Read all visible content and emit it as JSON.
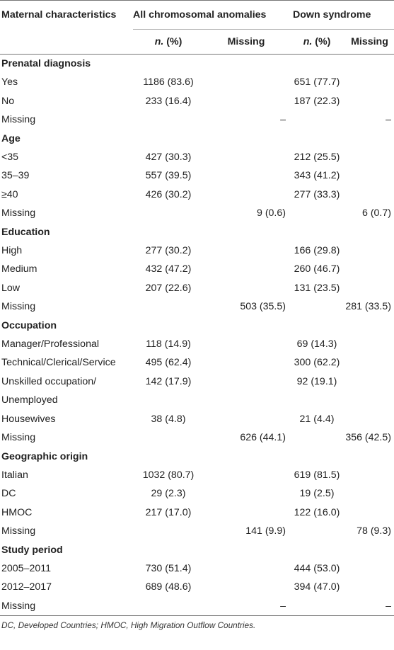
{
  "header": {
    "col_characteristic": "Maternal characteristics",
    "group_all": "All chromosomal anomalies",
    "group_down": "Down syndrome",
    "n_pct": "n. (%)",
    "n_label": "n.",
    "pct_label": " (%)",
    "missing": "Missing"
  },
  "sections": [
    {
      "title": "Prenatal diagnosis",
      "rows": [
        {
          "label": "Yes",
          "all_n": "1186 (83.6)",
          "all_missing": "",
          "down_n": "651 (77.7)",
          "down_missing": ""
        },
        {
          "label": "No",
          "all_n": "233 (16.4)",
          "all_missing": "",
          "down_n": "187 (22.3)",
          "down_missing": ""
        },
        {
          "label": "Missing",
          "all_n": "",
          "all_missing": "–",
          "down_n": "",
          "down_missing": "–"
        }
      ]
    },
    {
      "title": "Age",
      "rows": [
        {
          "label": "<35",
          "all_n": "427 (30.3)",
          "all_missing": "",
          "down_n": "212 (25.5)",
          "down_missing": ""
        },
        {
          "label": "35–39",
          "all_n": "557 (39.5)",
          "all_missing": "",
          "down_n": "343 (41.2)",
          "down_missing": ""
        },
        {
          "label": "≥40",
          "all_n": "426 (30.2)",
          "all_missing": "",
          "down_n": "277 (33.3)",
          "down_missing": ""
        },
        {
          "label": "Missing",
          "all_n": "",
          "all_missing": "9 (0.6)",
          "down_n": "",
          "down_missing": "6 (0.7)"
        }
      ]
    },
    {
      "title": "Education",
      "rows": [
        {
          "label": "High",
          "all_n": "277 (30.2)",
          "all_missing": "",
          "down_n": "166 (29.8)",
          "down_missing": ""
        },
        {
          "label": "Medium",
          "all_n": "432 (47.2)",
          "all_missing": "",
          "down_n": "260 (46.7)",
          "down_missing": ""
        },
        {
          "label": "Low",
          "all_n": "207 (22.6)",
          "all_missing": "",
          "down_n": "131 (23.5)",
          "down_missing": ""
        },
        {
          "label": "Missing",
          "all_n": "",
          "all_missing": "503 (35.5)",
          "down_n": "",
          "down_missing": "281 (33.5)"
        }
      ]
    },
    {
      "title": "Occupation",
      "rows": [
        {
          "label": "Manager/Professional",
          "all_n": "118 (14.9)",
          "all_missing": "",
          "down_n": "69 (14.3)",
          "down_missing": ""
        },
        {
          "label": "Technical/Clerical/Service",
          "all_n": "495 (62.4)",
          "all_missing": "",
          "down_n": "300 (62.2)",
          "down_missing": ""
        },
        {
          "label": "Unskilled occupation/",
          "all_n": "142 (17.9)",
          "all_missing": "",
          "down_n": "92 (19.1)",
          "down_missing": ""
        },
        {
          "label": "Unemployed",
          "all_n": "",
          "all_missing": "",
          "down_n": "",
          "down_missing": ""
        },
        {
          "label": "Housewives",
          "all_n": "38 (4.8)",
          "all_missing": "",
          "down_n": "21 (4.4)",
          "down_missing": ""
        },
        {
          "label": "Missing",
          "all_n": "",
          "all_missing": "626 (44.1)",
          "down_n": "",
          "down_missing": "356 (42.5)"
        }
      ]
    },
    {
      "title": "Geographic origin",
      "rows": [
        {
          "label": "Italian",
          "all_n": "1032 (80.7)",
          "all_missing": "",
          "down_n": "619 (81.5)",
          "down_missing": ""
        },
        {
          "label": "DC",
          "all_n": "29 (2.3)",
          "all_missing": "",
          "down_n": "19 (2.5)",
          "down_missing": ""
        },
        {
          "label": "HMOC",
          "all_n": "217 (17.0)",
          "all_missing": "",
          "down_n": "122 (16.0)",
          "down_missing": ""
        },
        {
          "label": "Missing",
          "all_n": "",
          "all_missing": "141 (9.9)",
          "down_n": "",
          "down_missing": "78 (9.3)"
        }
      ]
    },
    {
      "title": "Study period",
      "rows": [
        {
          "label": "2005–2011",
          "all_n": "730 (51.4)",
          "all_missing": "",
          "down_n": "444 (53.0)",
          "down_missing": ""
        },
        {
          "label": "2012–2017",
          "all_n": "689 (48.6)",
          "all_missing": "",
          "down_n": "394 (47.0)",
          "down_missing": ""
        },
        {
          "label": "Missing",
          "all_n": "",
          "all_missing": "–",
          "down_n": "",
          "down_missing": "–"
        }
      ]
    }
  ],
  "footnote": "DC, Developed Countries; HMOC, High Migration Outflow Countries."
}
